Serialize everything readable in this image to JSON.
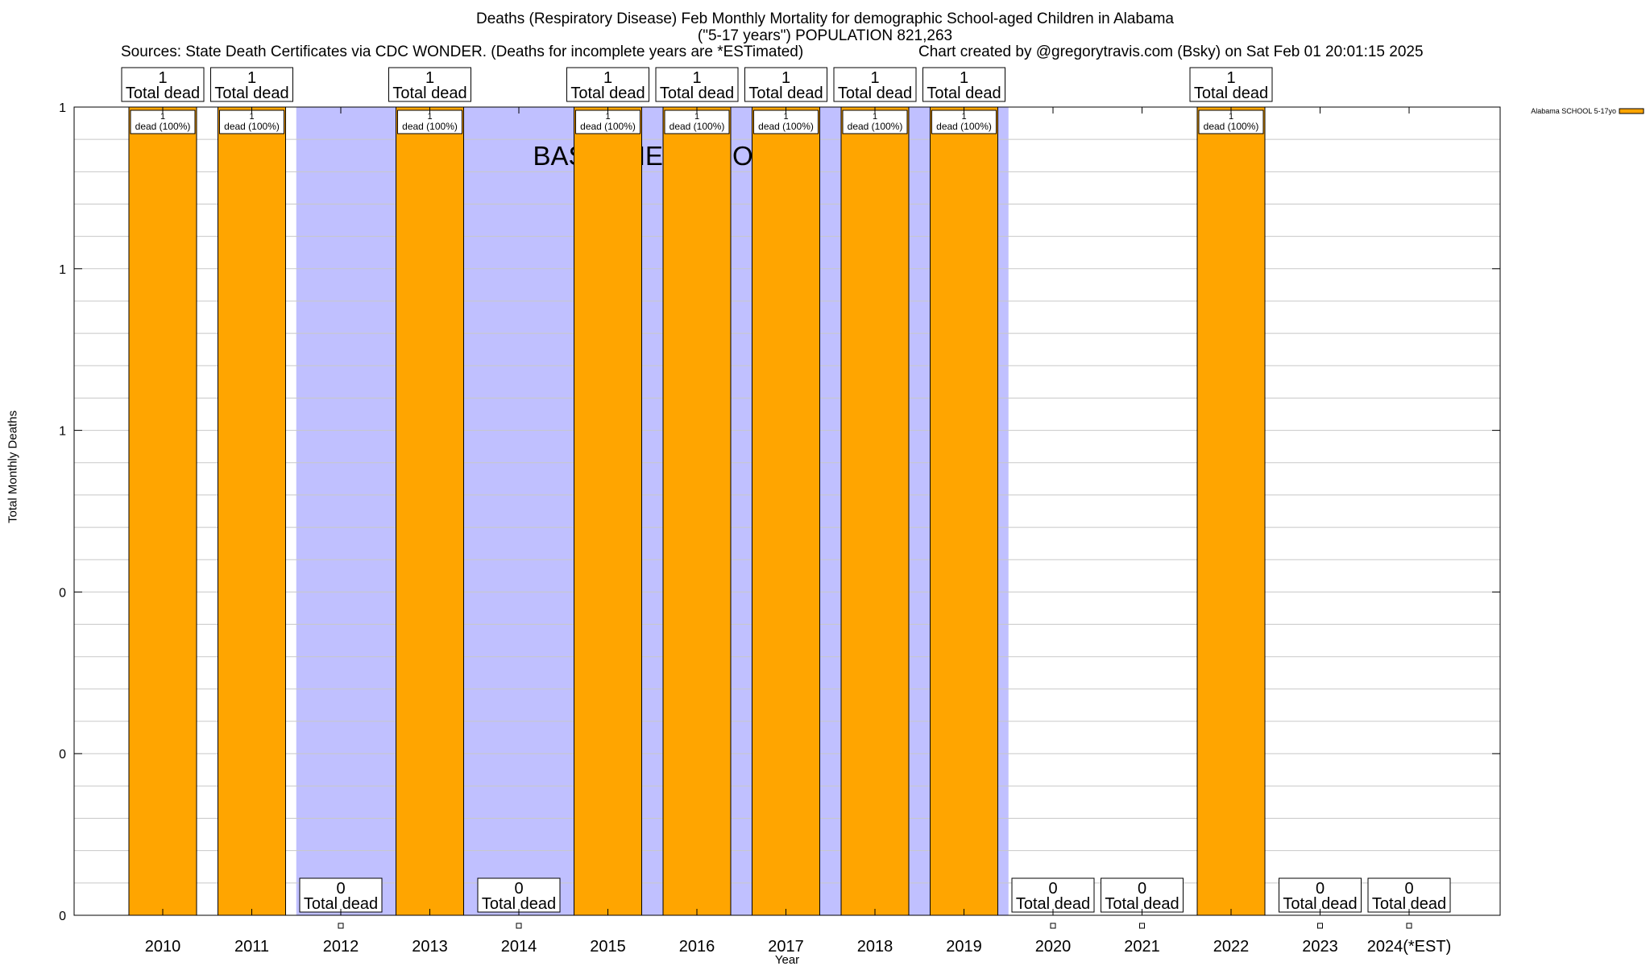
{
  "header": {
    "title": "Deaths (Respiratory Disease) Feb Monthly Mortality for demographic School-aged Children in Alabama",
    "subtitle": "(\"5-17 years\") POPULATION 821,263",
    "sources": "Sources: State Death Certificates via CDC WONDER. (Deaths for incomplete years are *ESTimated)",
    "credit": "Chart created by @gregorytravis.com (Bsky) on Sat Feb 01 20:01:15 2025"
  },
  "chart_data": {
    "type": "bar",
    "xlabel": "Year",
    "ylabel": "Total Monthly Deaths",
    "ylim": [
      0,
      1
    ],
    "y_tick_labels": [
      "0",
      "0",
      "0",
      "1",
      "1",
      "1"
    ],
    "grid": true,
    "legend": {
      "placement": "top-right",
      "label": "Alabama SCHOOL 5-17yo"
    },
    "categories": [
      "2010",
      "2011",
      "2012",
      "2013",
      "2014",
      "2015",
      "2016",
      "2017",
      "2018",
      "2019",
      "2020",
      "2021",
      "2022",
      "2023",
      "2024(*EST)"
    ],
    "series": [
      {
        "name": "Alabama SCHOOL 5-17yo",
        "values": [
          1,
          1,
          0,
          1,
          0,
          1,
          1,
          1,
          1,
          1,
          0,
          0,
          1,
          0,
          0
        ]
      }
    ],
    "total_label_suffix": "Total dead",
    "bar_label_suffix": "dead (100%)",
    "baseline_period": {
      "label": "BASELINE PERIOD",
      "from": "2012",
      "to": "2019"
    },
    "colors": {
      "bar": "#ffa500",
      "baseline": "#c0c0ff",
      "grid": "#c8c8c8"
    }
  }
}
